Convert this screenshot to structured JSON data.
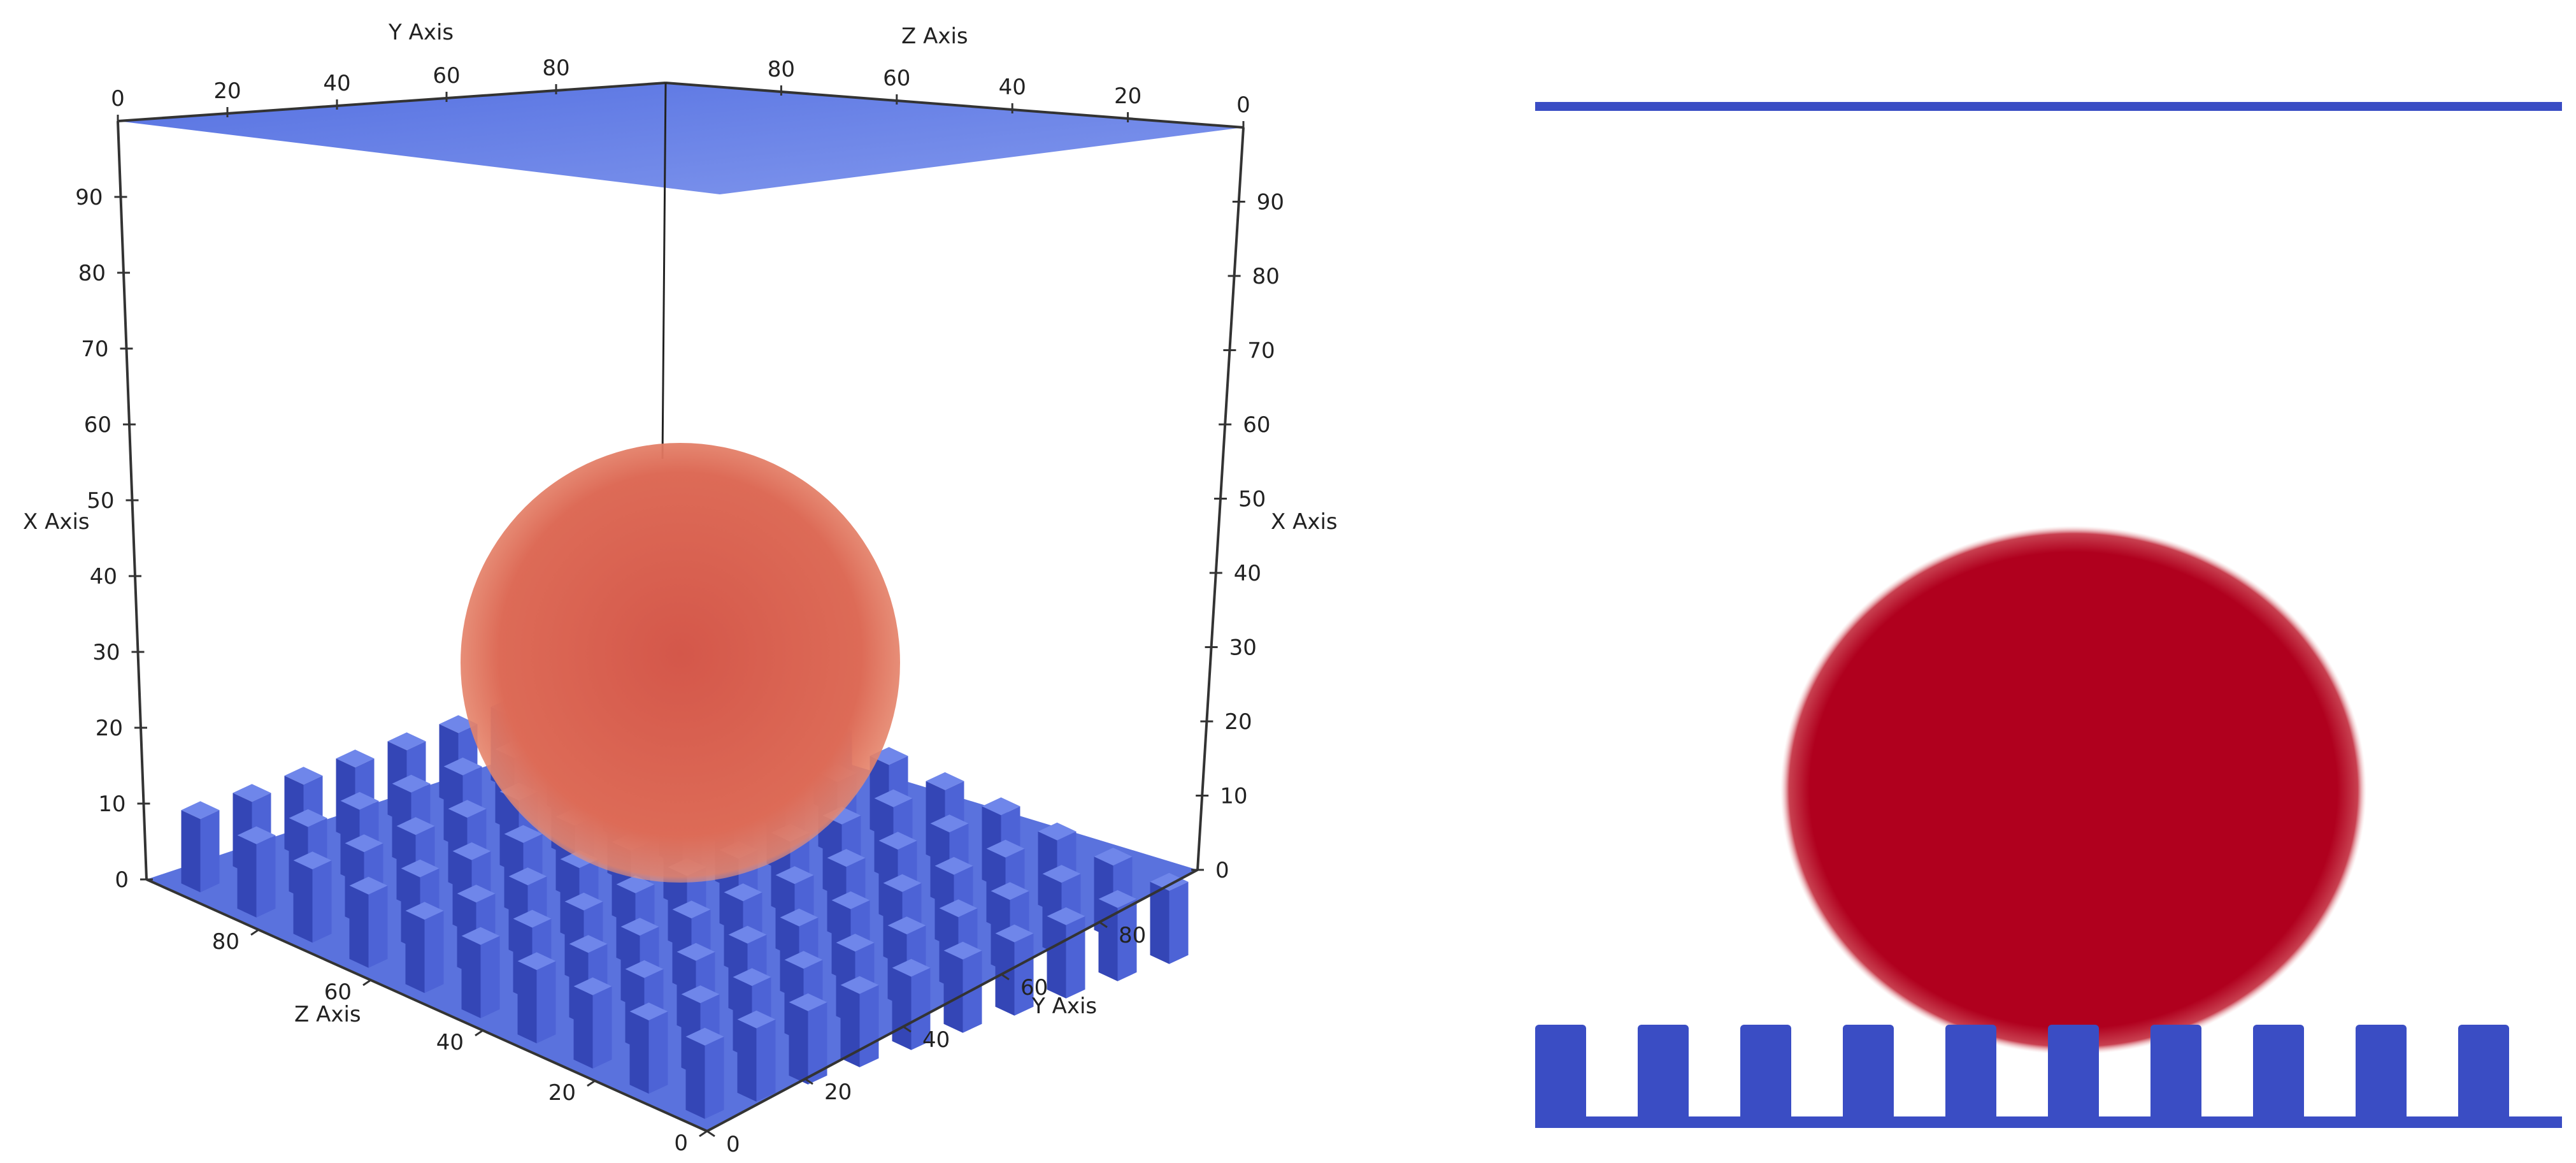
{
  "left_view": {
    "axis_titles": {
      "y_top": "Y Axis",
      "z_top": "Z Axis",
      "x_left": "X Axis",
      "x_right": "X Axis",
      "z_bottom": "Z Axis",
      "y_bottom": "Y Axis"
    },
    "tick_labels": {
      "y_top": [
        "0",
        "20",
        "40",
        "60",
        "80"
      ],
      "z_top": [
        "80",
        "60",
        "40",
        "20",
        "0"
      ],
      "x_left": [
        "0",
        "10",
        "20",
        "30",
        "40",
        "50",
        "60",
        "70",
        "80",
        "90"
      ],
      "x_right": [
        "0",
        "10",
        "20",
        "30",
        "40",
        "50",
        "60",
        "70",
        "80",
        "90"
      ],
      "z_bottom": [
        "80",
        "60",
        "40",
        "20",
        "0"
      ],
      "y_bottom": [
        "0",
        "20",
        "40",
        "60",
        "80"
      ]
    },
    "colors": {
      "pillars": "#3c50c8",
      "top_plate": "#5b78e6",
      "droplet": "#d4604f"
    }
  },
  "right_view": {
    "pillar_count": 10,
    "colors": {
      "walls": "#3a4dc4",
      "droplet": "#b0001e"
    }
  }
}
